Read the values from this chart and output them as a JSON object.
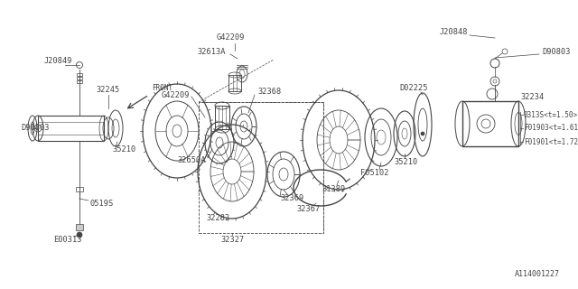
{
  "bg_color": "#ffffff",
  "diagram_id": "A114001227",
  "annotations_right": [
    "0313S<t=1.50>",
    "F01903<t=1.61>",
    "F01901<t=1.72>"
  ]
}
